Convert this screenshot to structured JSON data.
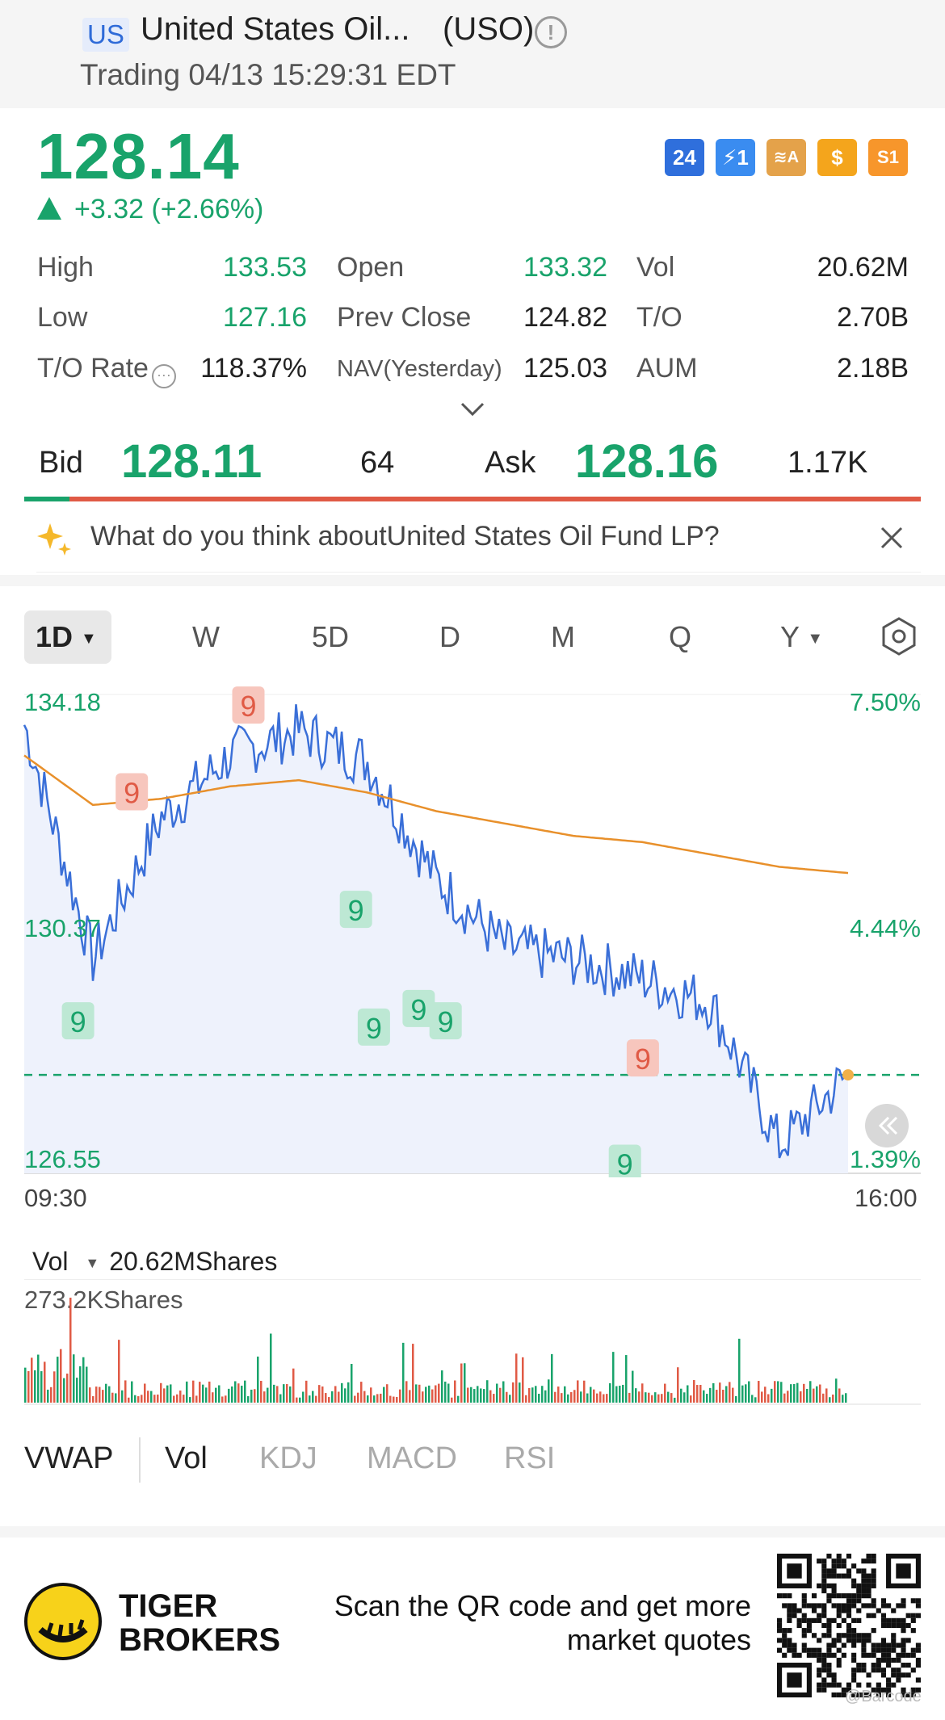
{
  "header": {
    "market": "US",
    "name": "United States Oil...",
    "symbol": "(USO)",
    "status": "Trading 04/13 15:29:31 EDT"
  },
  "quote": {
    "price": "128.14",
    "change": "+3.32 (+2.66%)",
    "badges": [
      "24",
      "⚡1",
      "≋A",
      "$",
      "S1"
    ]
  },
  "stats": {
    "high_label": "High",
    "high": "133.53",
    "open_label": "Open",
    "open": "133.32",
    "vol_label": "Vol",
    "vol": "20.62M",
    "low_label": "Low",
    "low": "127.16",
    "prev_label": "Prev Close",
    "prev": "124.82",
    "to_label": "T/O",
    "to": "2.70B",
    "torate_label": "T/O Rate",
    "torate": "118.37%",
    "nav_label": "NAV(Yesterday)",
    "nav": "125.03",
    "aum_label": "AUM",
    "aum": "2.18B"
  },
  "bidask": {
    "bid_label": "Bid",
    "bid": "128.11",
    "bid_size": "64",
    "ask_label": "Ask",
    "ask": "128.16",
    "ask_size": "1.17K",
    "bid_ratio": 0.05
  },
  "prompt": {
    "text": "What do you think aboutUnited States Oil Fund LP?"
  },
  "periods": [
    "1D",
    "W",
    "5D",
    "D",
    "M",
    "Q",
    "Y"
  ],
  "chart_axis": {
    "price_top": "134.18",
    "price_mid": "130.37",
    "price_bot": "126.55",
    "pct_top": "7.50%",
    "pct_mid": "4.44%",
    "pct_bot": "1.39%",
    "time_start": "09:30",
    "time_end": "16:00",
    "td_marker": "9"
  },
  "volume": {
    "label": "Vol",
    "total": "20.62MShares",
    "max": "273.2KShares"
  },
  "indicators": [
    "VWAP",
    "Vol",
    "KDJ",
    "MACD",
    "RSI"
  ],
  "footer": {
    "brand_line1": "TIGER",
    "brand_line2": "BROKERS",
    "scan_line1": "Scan the QR code and get more",
    "scan_line2": "market quotes",
    "qr_watermark": "@Barcode"
  },
  "colors": {
    "up": "#19a36b",
    "down": "#e05a45",
    "price_line": "#3a6fd8",
    "avg_line": "#e8902b"
  },
  "chart_data": {
    "type": "line",
    "x": [
      "09:30",
      "10:00",
      "10:30",
      "11:00",
      "11:30",
      "12:00",
      "12:30",
      "13:00",
      "13:30",
      "14:00",
      "14:30",
      "15:00",
      "15:30"
    ],
    "series": [
      {
        "values": [
          133.8,
          130.0,
          132.3,
          133.3,
          133.7,
          133.2,
          131.3,
          130.2,
          130.0,
          129.7,
          129.3,
          127.0,
          128.14
        ]
      },
      {
        "values": [
          133.3,
          132.5,
          132.6,
          132.8,
          132.9,
          132.7,
          132.4,
          132.2,
          132.0,
          131.9,
          131.7,
          131.5,
          131.4
        ]
      }
    ],
    "ylim": [
      126.55,
      134.18
    ]
  }
}
